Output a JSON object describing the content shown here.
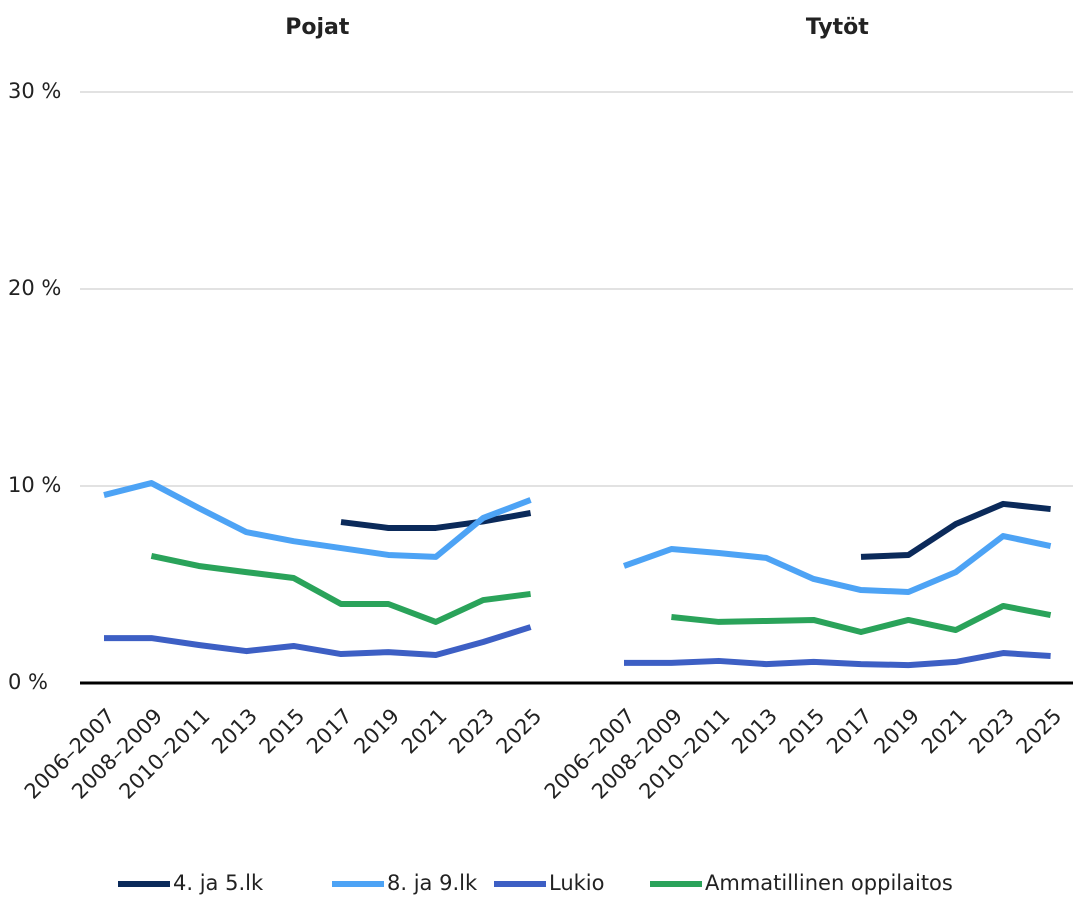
{
  "chart_data": {
    "type": "line",
    "ylim": [
      0,
      30
    ],
    "yticks": [
      {
        "value": 0,
        "label": "0 %"
      },
      {
        "value": 10,
        "label": "10 %"
      },
      {
        "value": 20,
        "label": "20 %"
      },
      {
        "value": 30,
        "label": "30 %"
      }
    ],
    "grid": true,
    "legend": "bottom",
    "series": [
      {
        "name": "4. ja 5.lk",
        "color": "#0b2a5a"
      },
      {
        "name": "8. ja 9.lk",
        "color": "#4da3f5"
      },
      {
        "name": "Lukio",
        "color": "#3d5fc4"
      },
      {
        "name": "Ammatillinen oppilaitos",
        "color": "#2aa35a"
      }
    ],
    "panels": [
      {
        "title": "Pojat",
        "categories": [
          "2006–2007",
          "2008–2009",
          "2010–2011",
          "2013",
          "2015",
          "2017",
          "2019",
          "2021",
          "2023",
          "2025"
        ],
        "values": [
          [
            null,
            null,
            null,
            null,
            null,
            8.17,
            7.87,
            7.87,
            8.2,
            8.63
          ],
          [
            9.54,
            10.15,
            8.88,
            7.66,
            7.2,
            6.85,
            6.5,
            6.4,
            8.38,
            9.29
          ],
          [
            2.28,
            2.28,
            1.93,
            1.62,
            1.88,
            1.47,
            1.57,
            1.42,
            2.08,
            2.84
          ],
          [
            null,
            6.45,
            5.94,
            5.63,
            5.33,
            4.01,
            4.01,
            3.1,
            4.21,
            4.52
          ]
        ]
      },
      {
        "title": "Tytöt",
        "categories": [
          "2006–2007",
          "2008–2009",
          "2010–2011",
          "2013",
          "2015",
          "2017",
          "2019",
          "2021",
          "2023",
          "2025"
        ],
        "values": [
          [
            null,
            null,
            null,
            null,
            null,
            6.4,
            6.5,
            8.07,
            9.09,
            8.83
          ],
          [
            5.94,
            6.8,
            6.6,
            6.35,
            5.28,
            4.72,
            4.62,
            5.63,
            7.46,
            6.95
          ],
          [
            1.02,
            1.02,
            1.12,
            0.96,
            1.07,
            0.96,
            0.91,
            1.07,
            1.52,
            1.37
          ],
          [
            null,
            3.35,
            3.1,
            3.15,
            3.2,
            2.59,
            3.2,
            2.69,
            3.91,
            3.45
          ]
        ]
      }
    ]
  }
}
